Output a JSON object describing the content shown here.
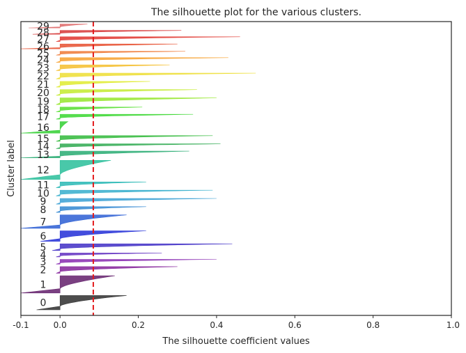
{
  "chart_data": {
    "type": "silhouette",
    "title": "The silhouette plot for the various clusters.",
    "xlabel": "The silhouette coefficient values",
    "ylabel": "Cluster label",
    "xlim": [
      -0.1,
      1.0
    ],
    "xticks": [
      "-0.1",
      "0.0",
      "0.2",
      "0.4",
      "0.6",
      "0.8",
      "1.0"
    ],
    "xtick_values": [
      -0.1,
      0.0,
      0.2,
      0.4,
      0.6,
      0.8,
      1.0
    ],
    "average_silhouette": 0.085,
    "average_line_color": "#e31a1c",
    "grid": false,
    "clusters": [
      {
        "label": "0",
        "size": 30,
        "max": 0.17,
        "min": -0.06,
        "color": "#3a3a3a"
      },
      {
        "label": "1",
        "size": 36,
        "max": 0.14,
        "min": -0.1,
        "color": "#6b2b73"
      },
      {
        "label": "2",
        "size": 14,
        "max": 0.3,
        "min": -0.01,
        "color": "#8b2fa0"
      },
      {
        "label": "3",
        "size": 10,
        "max": 0.4,
        "min": -0.01,
        "color": "#8e35b5"
      },
      {
        "label": "4",
        "size": 8,
        "max": 0.26,
        "min": -0.01,
        "color": "#6a3cc4"
      },
      {
        "label": "5",
        "size": 14,
        "max": 0.44,
        "min": -0.02,
        "color": "#4b3bc9"
      },
      {
        "label": "6",
        "size": 22,
        "max": 0.22,
        "min": -0.05,
        "color": "#2f3ad9"
      },
      {
        "label": "7",
        "size": 28,
        "max": 0.17,
        "min": -0.1,
        "color": "#3767d6"
      },
      {
        "label": "8",
        "size": 12,
        "max": 0.22,
        "min": -0.01,
        "color": "#3e8ed4"
      },
      {
        "label": "9",
        "size": 12,
        "max": 0.4,
        "min": -0.01,
        "color": "#45a5d6"
      },
      {
        "label": "10",
        "size": 12,
        "max": 0.39,
        "min": -0.01,
        "color": "#41b3cf"
      },
      {
        "label": "11",
        "size": 12,
        "max": 0.22,
        "min": -0.01,
        "color": "#35bcb9"
      },
      {
        "label": "12",
        "size": 40,
        "max": 0.13,
        "min": -0.1,
        "color": "#35c2a0"
      },
      {
        "label": "13",
        "size": 14,
        "max": 0.33,
        "min": -0.1,
        "color": "#34b07a"
      },
      {
        "label": "14",
        "size": 10,
        "max": 0.41,
        "min": -0.01,
        "color": "#3aae5a"
      },
      {
        "label": "15",
        "size": 12,
        "max": 0.39,
        "min": -0.01,
        "color": "#3cbd45"
      },
      {
        "label": "16",
        "size": 24,
        "max": 0.02,
        "min": -0.1,
        "color": "#3dd13d"
      },
      {
        "label": "17",
        "size": 10,
        "max": 0.34,
        "min": -0.01,
        "color": "#45d93c"
      },
      {
        "label": "18",
        "size": 10,
        "max": 0.21,
        "min": -0.01,
        "color": "#5ee03a"
      },
      {
        "label": "19",
        "size": 14,
        "max": 0.4,
        "min": -0.01,
        "color": "#9be838"
      },
      {
        "label": "20",
        "size": 12,
        "max": 0.35,
        "min": -0.01,
        "color": "#c7ec3a"
      },
      {
        "label": "21",
        "size": 12,
        "max": 0.23,
        "min": -0.01,
        "color": "#e1ec3c"
      },
      {
        "label": "22",
        "size": 12,
        "max": 0.5,
        "min": -0.01,
        "color": "#eee03e"
      },
      {
        "label": "23",
        "size": 12,
        "max": 0.28,
        "min": -0.01,
        "color": "#f5c23a"
      },
      {
        "label": "24",
        "size": 10,
        "max": 0.43,
        "min": -0.01,
        "color": "#f7a437"
      },
      {
        "label": "25",
        "size": 8,
        "max": 0.32,
        "min": -0.01,
        "color": "#f08040"
      },
      {
        "label": "26",
        "size": 10,
        "max": 0.3,
        "min": -0.1,
        "color": "#e85a3c"
      },
      {
        "label": "27",
        "size": 10,
        "max": 0.46,
        "min": -0.01,
        "color": "#e2403a"
      },
      {
        "label": "28",
        "size": 8,
        "max": 0.31,
        "min": -0.07,
        "color": "#d84040"
      },
      {
        "label": "29",
        "size": 8,
        "max": 0.07,
        "min": -0.08,
        "color": "#e07070"
      }
    ]
  }
}
